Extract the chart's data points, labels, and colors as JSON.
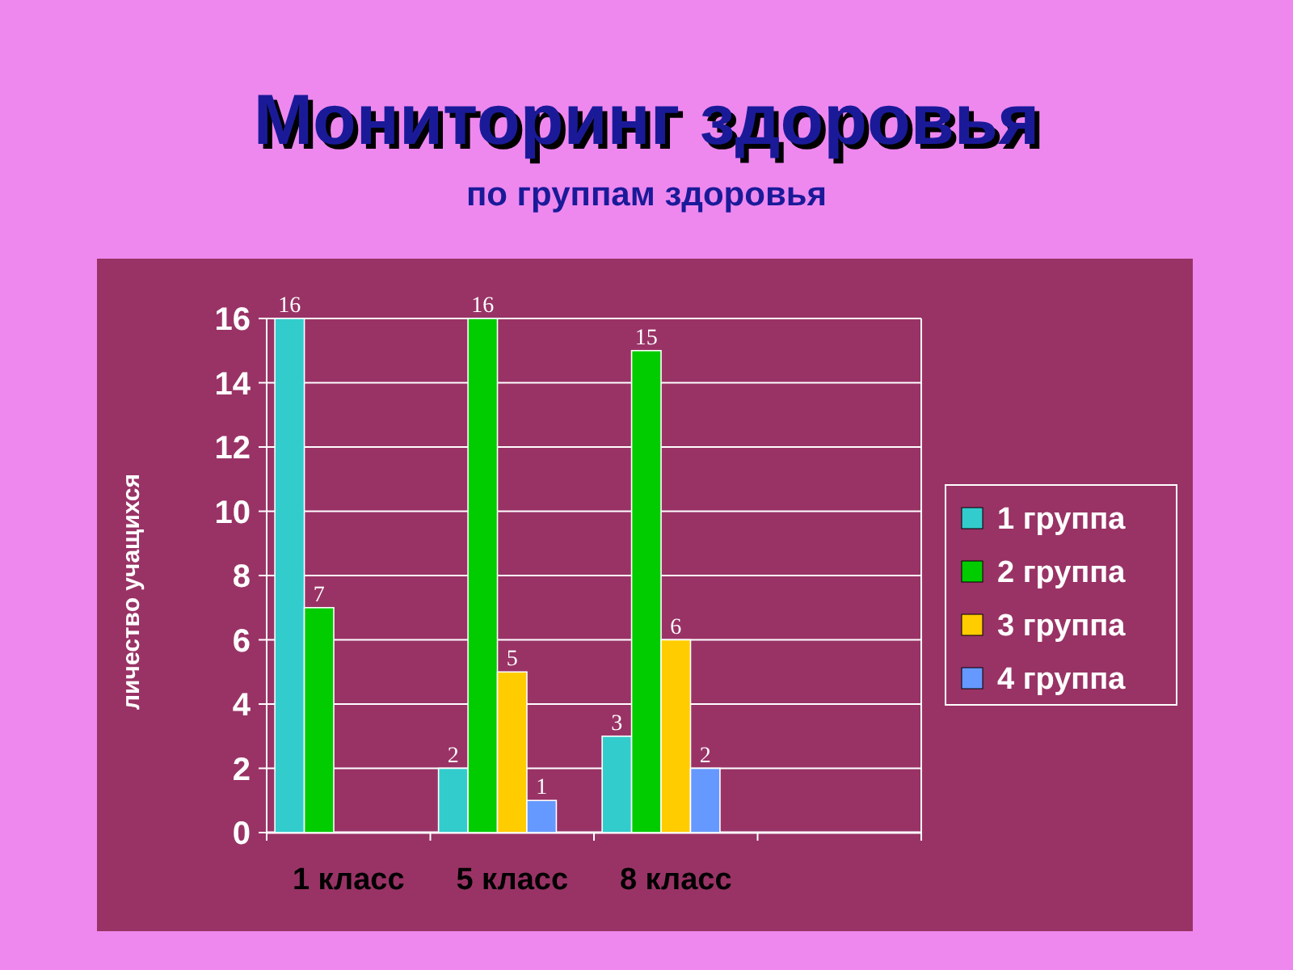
{
  "chart_data": {
    "type": "bar",
    "title": "Мониторинг здоровья",
    "subtitle": "по группам здоровья",
    "ylabel": "личество учащихся",
    "categories": [
      "1 класс",
      "5 класс",
      "8 класс",
      null
    ],
    "series": [
      {
        "name": "1 группа",
        "color": "#33cccc",
        "values": [
          16,
          2,
          3,
          null
        ]
      },
      {
        "name": "2 группа",
        "color": "#00cc00",
        "values": [
          7,
          16,
          15,
          null
        ]
      },
      {
        "name": "3 группа",
        "color": "#ffcc00",
        "values": [
          null,
          5,
          6,
          null
        ]
      },
      {
        "name": "4 группа",
        "color": "#6699ff",
        "values": [
          null,
          1,
          2,
          null
        ]
      }
    ],
    "ylim": [
      0,
      16
    ],
    "yticks": [
      0,
      2,
      4,
      6,
      8,
      10,
      12,
      14,
      16
    ],
    "grid": "y",
    "legend": "right",
    "data_labels": true
  }
}
